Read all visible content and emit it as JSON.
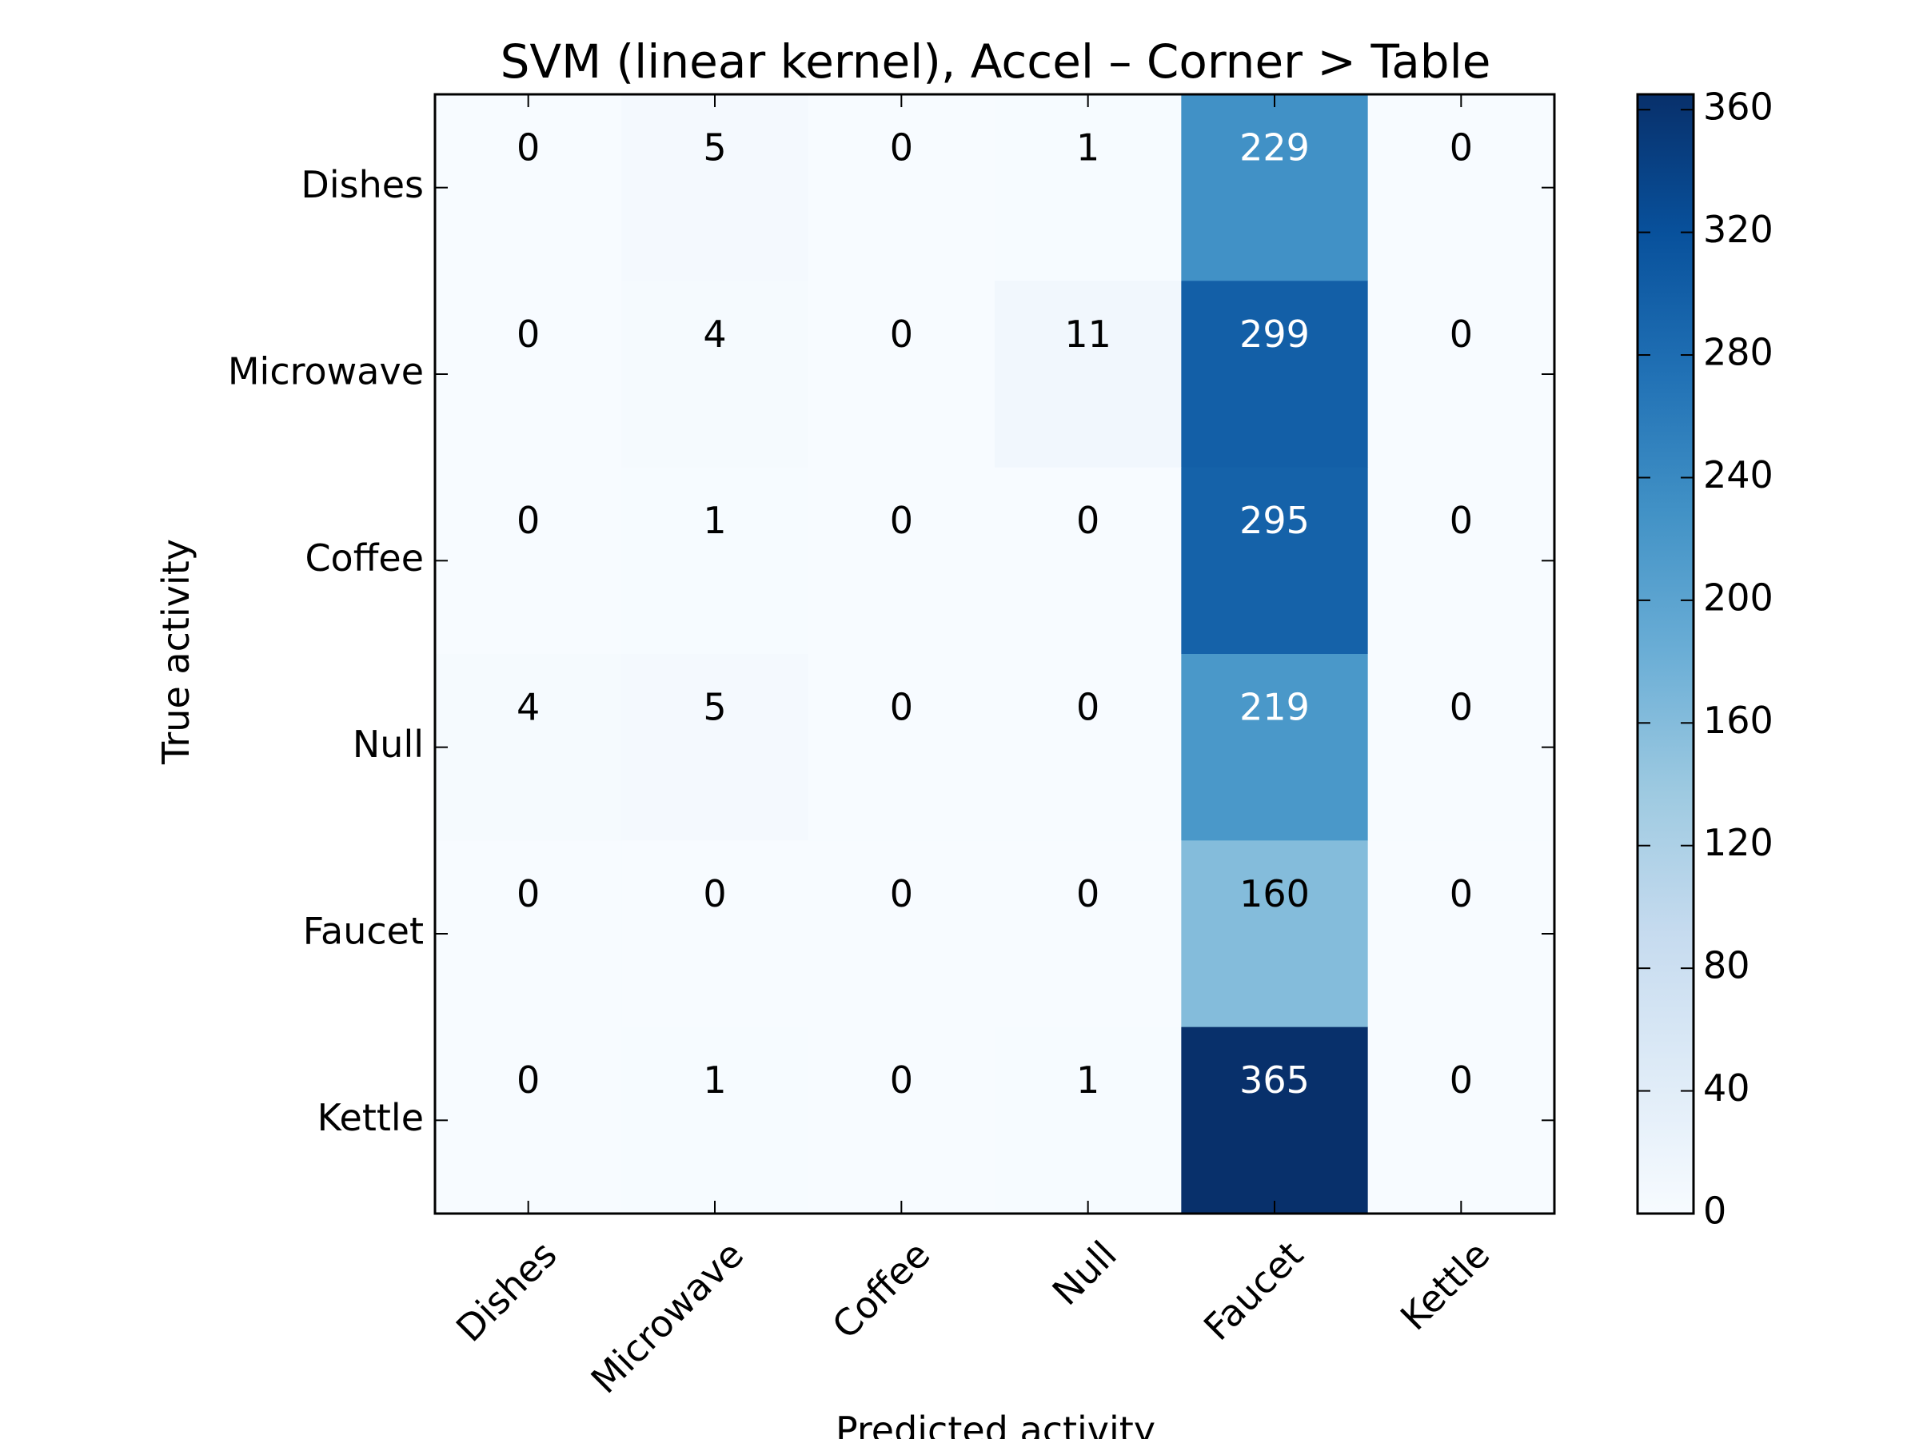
{
  "chart_data": {
    "type": "heatmap",
    "title": "SVM (linear kernel), Accel – Corner > Table",
    "xlabel": "Predicted activity",
    "ylabel": "True activity",
    "x_categories": [
      "Dishes",
      "Microwave",
      "Coffee",
      "Null",
      "Faucet",
      "Kettle"
    ],
    "y_categories": [
      "Dishes",
      "Microwave",
      "Coffee",
      "Null",
      "Faucet",
      "Kettle"
    ],
    "values": [
      [
        0,
        5,
        0,
        1,
        229,
        0
      ],
      [
        0,
        4,
        0,
        11,
        299,
        0
      ],
      [
        0,
        1,
        0,
        0,
        295,
        0
      ],
      [
        4,
        5,
        0,
        0,
        219,
        0
      ],
      [
        0,
        0,
        0,
        0,
        160,
        0
      ],
      [
        0,
        1,
        0,
        1,
        365,
        0
      ]
    ],
    "colormap": "Blues",
    "colorbar": {
      "range": [
        0,
        365
      ],
      "ticks": [
        0,
        40,
        80,
        120,
        160,
        200,
        240,
        280,
        320,
        360
      ]
    }
  }
}
